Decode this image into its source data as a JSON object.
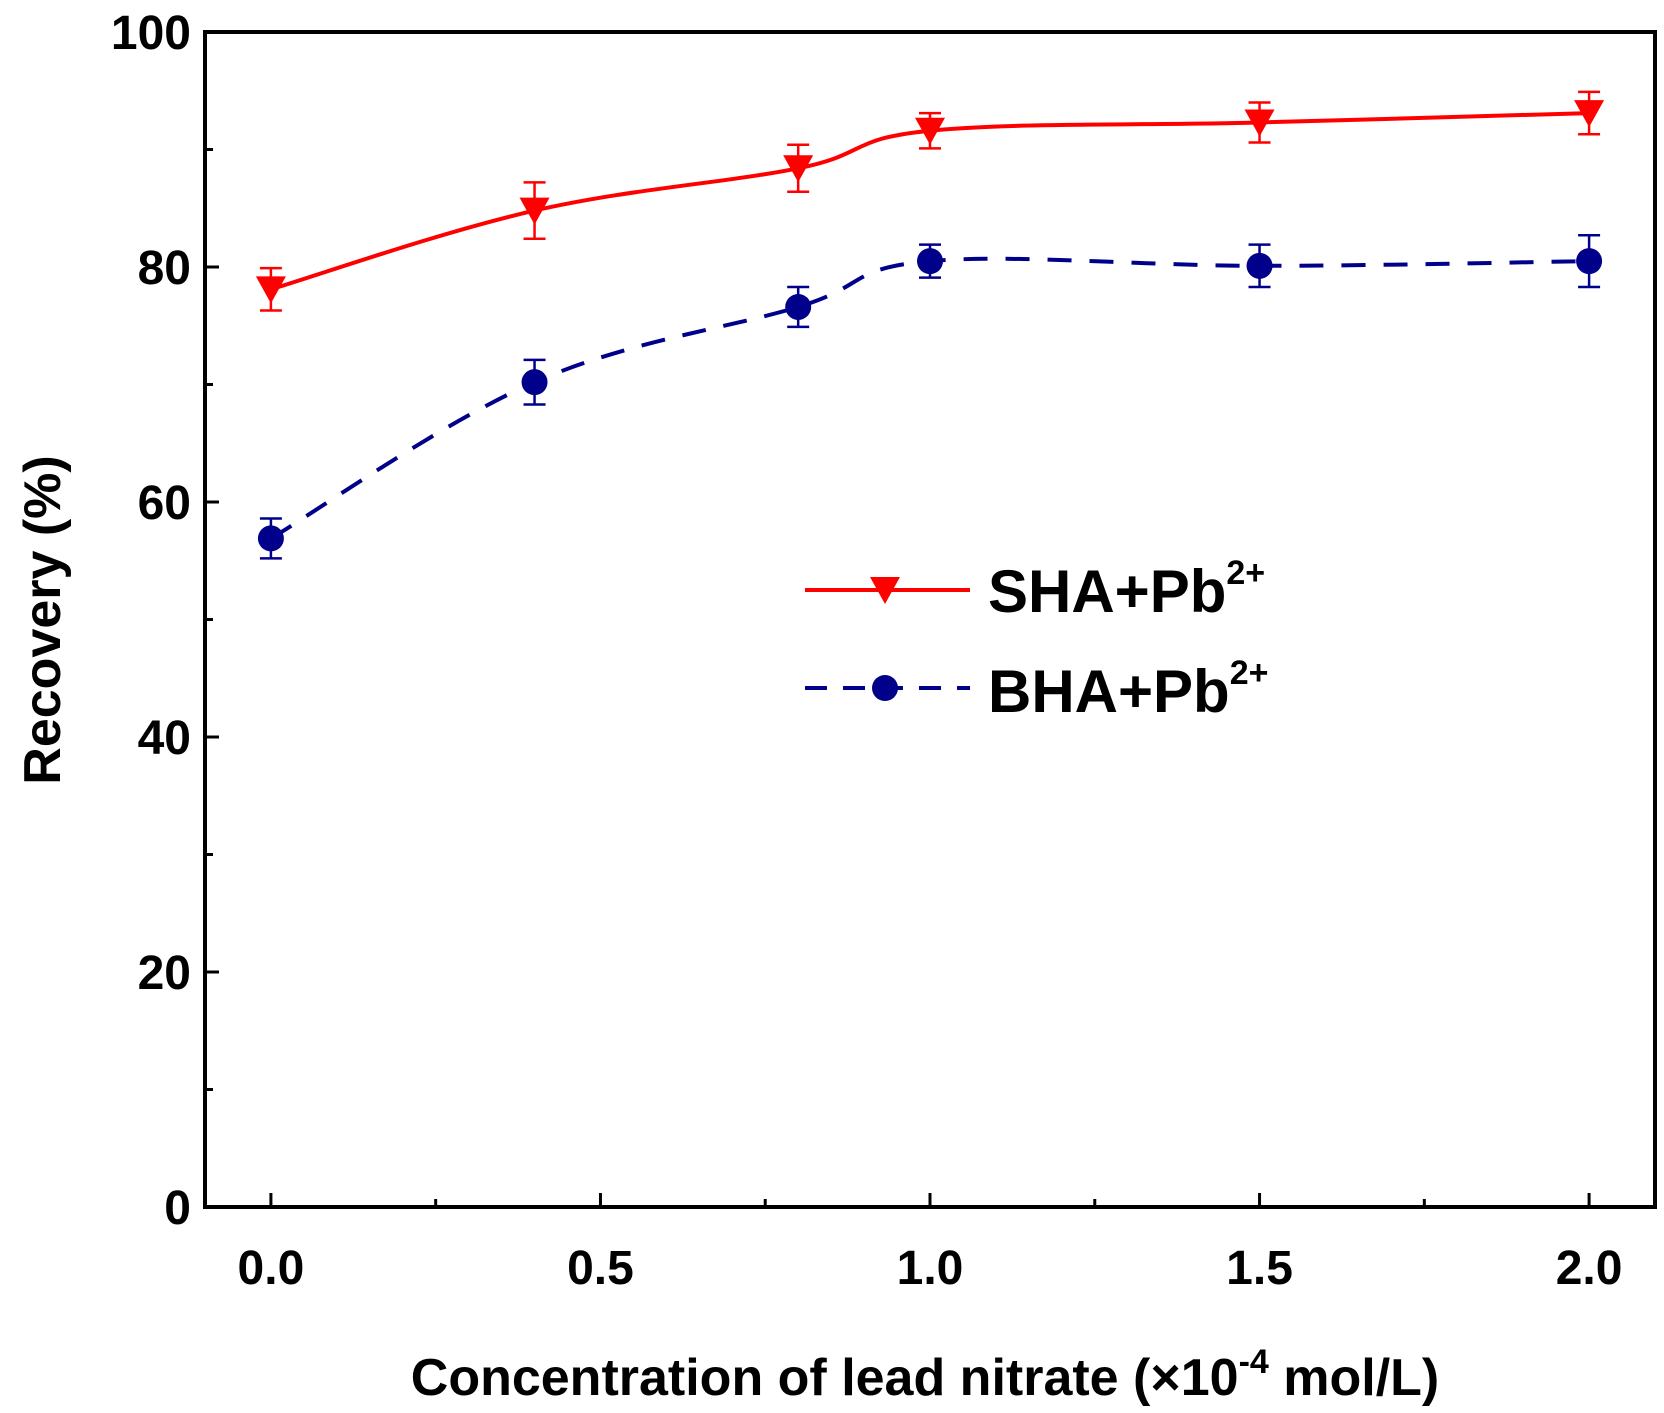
{
  "chart_data": {
    "type": "line",
    "xlabel": "Concentration of lead nitrate (×10",
    "xlabel_exp": "-4",
    "xlabel_tail": " mol/L)",
    "ylabel": "Recovery (%)",
    "xlim": [
      -0.1,
      2.1
    ],
    "ylim": [
      0,
      100
    ],
    "x_ticks": [
      "0.0",
      "0.5",
      "1.0",
      "1.5",
      "2.0"
    ],
    "x_tick_values": [
      0.0,
      0.5,
      1.0,
      1.5,
      2.0
    ],
    "x_minor_ticks": [
      0.25,
      0.75,
      1.25,
      1.75
    ],
    "y_ticks": [
      "0",
      "20",
      "40",
      "60",
      "80",
      "100"
    ],
    "y_tick_values": [
      0,
      20,
      40,
      60,
      80,
      100
    ],
    "y_minor_ticks": [
      10,
      30,
      50,
      70,
      90
    ],
    "legend_position": "center-right",
    "series": [
      {
        "name": "SHA+Pb",
        "name_sup": "2+",
        "color": "#ff0000",
        "marker": "triangle-down",
        "line": "solid",
        "x": [
          0.0,
          0.4,
          0.8,
          1.0,
          1.5,
          2.0
        ],
        "y": [
          78.1,
          84.8,
          88.4,
          91.6,
          92.3,
          93.1
        ],
        "err": [
          1.8,
          2.4,
          2.0,
          1.5,
          1.7,
          1.8
        ]
      },
      {
        "name": "BHA+Pb",
        "name_sup": "2+",
        "color": "#00008b",
        "marker": "circle",
        "line": "dashed",
        "x": [
          0.0,
          0.4,
          0.8,
          1.0,
          1.5,
          2.0
        ],
        "y": [
          56.9,
          70.2,
          76.6,
          80.5,
          80.1,
          80.5
        ],
        "err": [
          1.7,
          1.9,
          1.7,
          1.4,
          1.8,
          2.2
        ]
      }
    ]
  }
}
